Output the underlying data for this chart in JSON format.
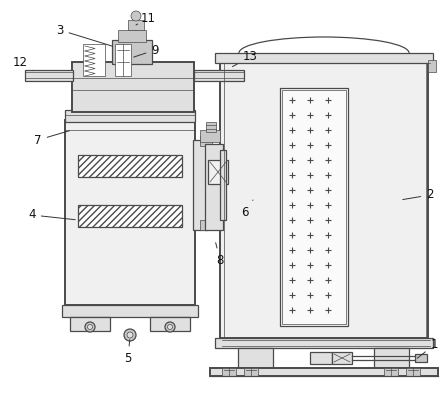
{
  "bg": "#ffffff",
  "lc": "#4a4a4a",
  "fc_light": "#f0f0f0",
  "fc_mid": "#e0e0e0",
  "fc_dark": "#c8c8c8",
  "lw": 0.9,
  "lt": 0.5,
  "lk": 1.4,
  "fs": 8.5
}
